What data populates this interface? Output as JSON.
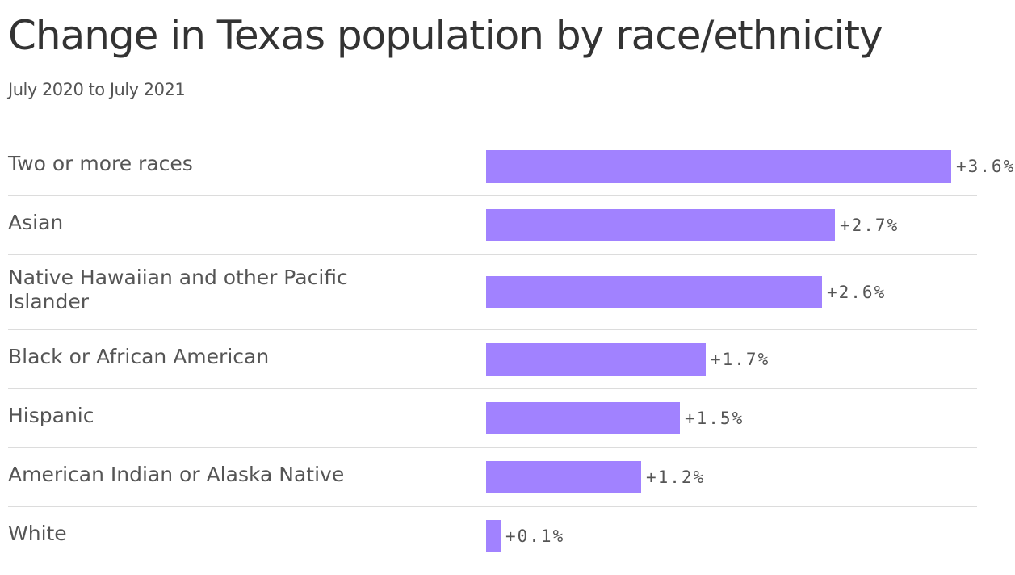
{
  "title": "Change in Texas population by race/ethnicity",
  "subtitle": "July 2020 to July 2021",
  "colors": {
    "bar": "#a182ff",
    "label_text": "#555555",
    "title_text": "#333333",
    "divider": "#dcdcdc"
  },
  "chart_data": {
    "type": "bar",
    "orientation": "horizontal",
    "title": "Change in Texas population by race/ethnicity",
    "subtitle": "July 2020 to July 2021",
    "xlabel": "",
    "ylabel": "",
    "xlim": [
      0,
      3.6
    ],
    "grid": false,
    "legend": "none",
    "unit": "%",
    "categories": [
      "Two or more races",
      "Asian",
      "Native Hawaiian and other Pacific Islander",
      "Black or African American",
      "Hispanic",
      "American Indian or Alaska Native",
      "White"
    ],
    "values": [
      3.6,
      2.7,
      2.6,
      1.7,
      1.5,
      1.2,
      0.1
    ],
    "value_labels": [
      "+3.6%",
      "+2.7%",
      "+2.6%",
      "+1.7%",
      "+1.5%",
      "+1.2%",
      "+0.1%"
    ]
  }
}
